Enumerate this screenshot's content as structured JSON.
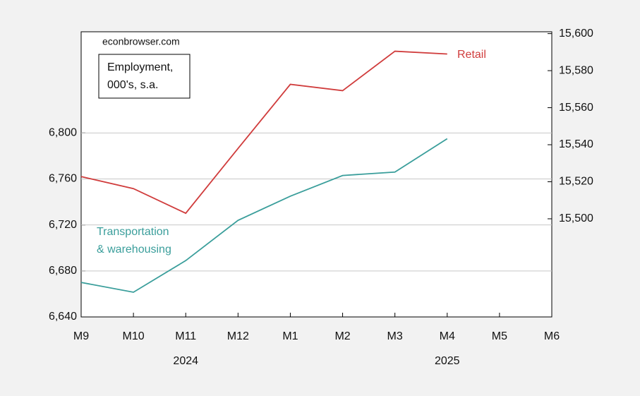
{
  "chart_data": {
    "type": "line",
    "source": "econbrowser.com",
    "units_note": [
      "Employment,",
      "000's, s.a."
    ],
    "categories": [
      "M9",
      "M10",
      "M11",
      "M12",
      "M1",
      "M2",
      "M3",
      "M4",
      "M5",
      "M6"
    ],
    "year_labels": [
      {
        "label": "2024",
        "category": "M11"
      },
      {
        "label": "2025",
        "category": "M4"
      }
    ],
    "series": [
      {
        "name": "Transportation & warehousing",
        "color": "#3a9e9b",
        "values": [
          6670,
          6661.5,
          6689,
          6724,
          6745,
          6763,
          6766,
          6795,
          null,
          null
        ]
      },
      {
        "name": "Retail",
        "color": "#d03c3c",
        "axis": "y2",
        "values": [
          15522.8,
          15516.3,
          15503,
          15538,
          15572.6,
          15569.2,
          15590.5,
          15589,
          null,
          null
        ]
      }
    ],
    "ylim": [
      6640,
      6888
    ],
    "yticks": [
      {
        "value": 6640,
        "label": "6,640"
      },
      {
        "value": 6680,
        "label": "6,680"
      },
      {
        "value": 6720,
        "label": "6,720"
      },
      {
        "value": 6760,
        "label": "6,760"
      },
      {
        "value": 6800,
        "label": "6,800"
      }
    ],
    "y2lim": [
      15447,
      15601
    ],
    "y2ticks": [
      {
        "value": 15500,
        "label": "15,500"
      },
      {
        "value": 15520,
        "label": "15,520"
      },
      {
        "value": 15540,
        "label": "15,540"
      },
      {
        "value": 15560,
        "label": "15,560"
      },
      {
        "value": 15580,
        "label": "15,580"
      },
      {
        "value": 15600,
        "label": "15,600"
      }
    ],
    "grid": true
  }
}
